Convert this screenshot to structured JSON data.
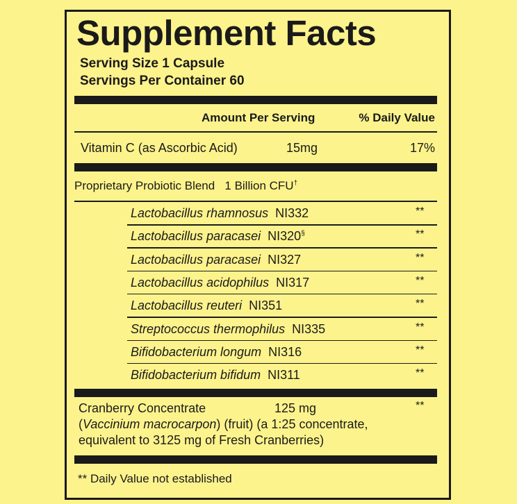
{
  "title": "Supplement Facts",
  "serving_size": "Serving Size 1 Capsule",
  "servings_per_container": "Servings Per Container 60",
  "header": {
    "amount": "Amount Per Serving",
    "daily_value": "% Daily Value"
  },
  "vitamin": {
    "name": "Vitamin C (as Ascorbic Acid)",
    "amount": "15mg",
    "daily_value": "17%"
  },
  "blend": {
    "name": "Proprietary Probiotic Blend",
    "amount": "1 Billion CFU",
    "mark": "†"
  },
  "strains": [
    {
      "species": "Lactobacillus rhamnosus",
      "strain": "NI332",
      "daily_value": "**"
    },
    {
      "species": "Lactobacillus paracasei",
      "strain": "NI320",
      "sup": "§",
      "daily_value": "**"
    },
    {
      "species": "Lactobacillus paracasei",
      "strain": "NI327",
      "daily_value": "**"
    },
    {
      "species": "Lactobacillus acidophilus",
      "strain": "NI317",
      "daily_value": "**"
    },
    {
      "species": "Lactobacillus reuteri",
      "strain": "NI351",
      "daily_value": "**"
    },
    {
      "species": "Streptococcus thermophilus",
      "strain": "NI335",
      "daily_value": "**"
    },
    {
      "species": "Bifidobacterium longum",
      "strain": "NI316",
      "daily_value": "**"
    },
    {
      "species": "Bifidobacterium bifidum",
      "strain": "NI311",
      "daily_value": "**"
    }
  ],
  "cranberry": {
    "name": "Cranberry Concentrate",
    "amount": "125 mg",
    "daily_value": "**",
    "description": {
      "prefix": "(",
      "latin": "Vaccinium macrocarpon",
      "rest": ") (fruit) (a 1:25 concentrate,"
    },
    "description_line2": "equivalent to 3125 mg of Fresh Cranberries)"
  },
  "footnote": "** Daily Value not established"
}
